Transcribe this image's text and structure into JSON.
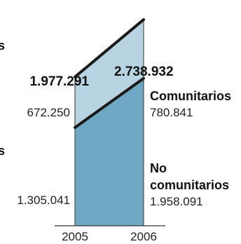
{
  "chart_data": {
    "type": "area",
    "stacked": true,
    "categories": [
      "2005",
      "2006"
    ],
    "totals": [
      "1.977.291",
      "2.738.932"
    ],
    "series": [
      {
        "name": "No comunitarios",
        "values": [
          1305041,
          1958091
        ],
        "labels": [
          "1.305.041",
          "1.958.091"
        ],
        "legend_lines": [
          "No",
          "comunitarios"
        ],
        "color": "#6fa8c4"
      },
      {
        "name": "Comunitarios",
        "values": [
          672250,
          780841
        ],
        "labels": [
          "672.250",
          "780.841"
        ],
        "legend_lines": [
          "Comunitarios"
        ],
        "color": "#b8d4e2"
      }
    ],
    "cropped_left_text": [
      "s",
      "s"
    ],
    "boundary_line_color": "#1a1a1a",
    "axis_color": "#333333"
  }
}
